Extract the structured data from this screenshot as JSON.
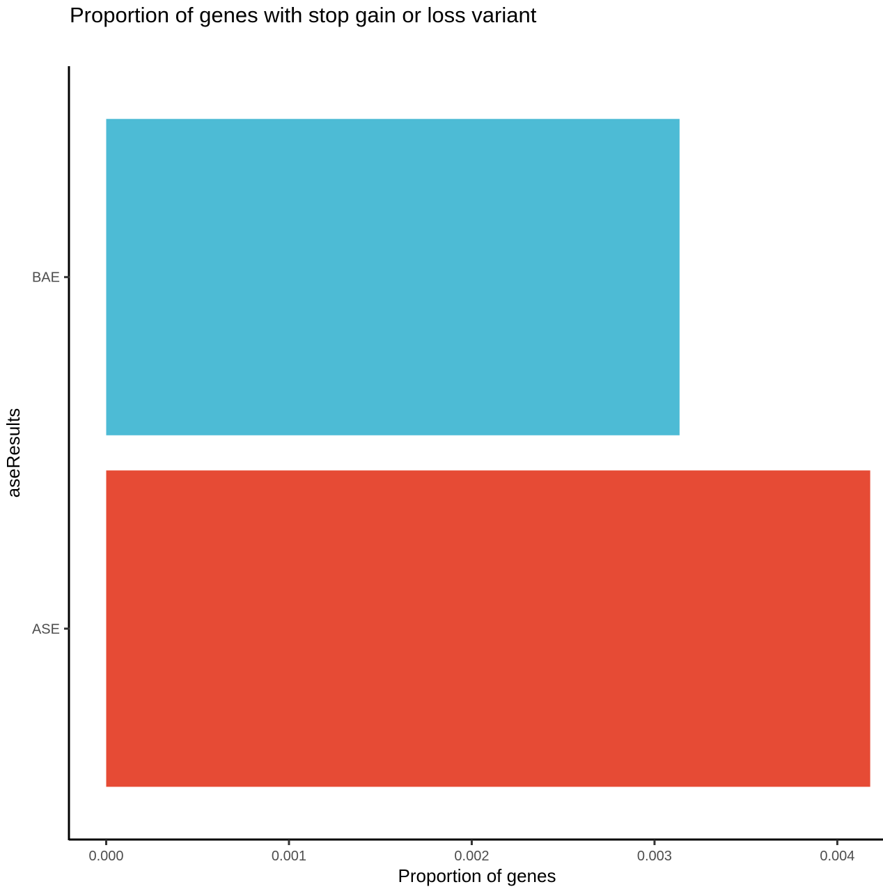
{
  "chart_data": {
    "type": "bar",
    "orientation": "horizontal",
    "title": "Proportion of genes with stop gain or loss variant",
    "xlabel": "Proportion of genes",
    "ylabel": "aseResults",
    "categories": [
      "ASE",
      "BAE"
    ],
    "values": [
      0.00418,
      0.003137
    ],
    "colors": [
      "#E64B35",
      "#4DBBD5"
    ],
    "xlim": [
      -0.0002,
      0.00425
    ],
    "x_ticks": [
      0.0,
      0.001,
      0.002,
      0.003,
      0.004
    ],
    "x_tick_labels": [
      "0.000",
      "0.001",
      "0.002",
      "0.003",
      "0.004"
    ],
    "grid": false,
    "legend": "none"
  }
}
